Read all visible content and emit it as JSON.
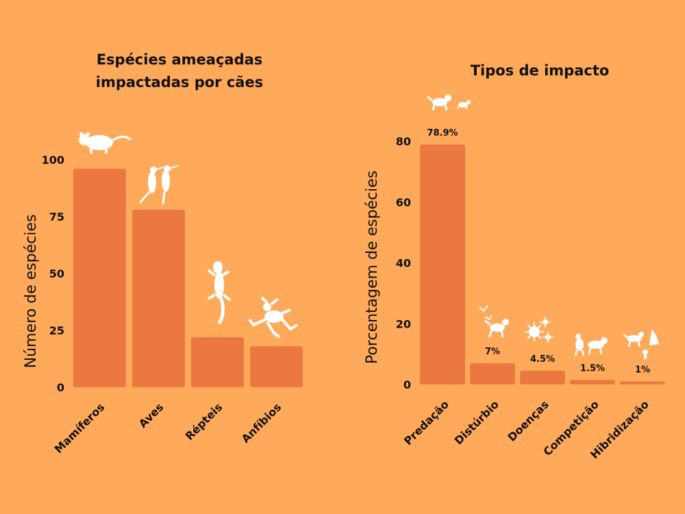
{
  "colors": {
    "background": "#FFA95A",
    "bar": "#EC7841",
    "icon": "#FFFFFF",
    "text": "#111111"
  },
  "chart_data": [
    {
      "type": "bar",
      "title": "Espécies ameaçadas\nimpactadas por cães",
      "xlabel": "",
      "ylabel": "Número de espécies",
      "ylim": [
        0,
        100
      ],
      "yticks": [
        "0",
        "25",
        "50",
        "75",
        "100"
      ],
      "categories": [
        "Mamíferos",
        "Aves",
        "Répteis",
        "Anfíbios"
      ],
      "values": [
        96,
        78,
        22,
        18
      ],
      "grid": false,
      "icons": [
        "possum-icon",
        "hummingbirds-icon",
        "lizard-icon",
        "frog-icon"
      ]
    },
    {
      "type": "bar",
      "title": "Tipos de impacto",
      "xlabel": "",
      "ylabel": "Porcentagem de espécies",
      "ylim": [
        0,
        80
      ],
      "yticks": [
        "0",
        "20",
        "40",
        "60",
        "80"
      ],
      "categories": [
        "Predação",
        "Distúrbio",
        "Doenças",
        "Competição",
        "Hibridização"
      ],
      "values": [
        78.9,
        7,
        4.5,
        1.5,
        1
      ],
      "data_labels": [
        "78.9%",
        "7%",
        "4.5%",
        "1.5%",
        "1%"
      ],
      "grid": false,
      "icons": [
        "dog-chasing-icon",
        "dog-birds-icon",
        "germs-icon",
        "dogs-competing-icon",
        "dog-wolf-icon"
      ]
    }
  ]
}
